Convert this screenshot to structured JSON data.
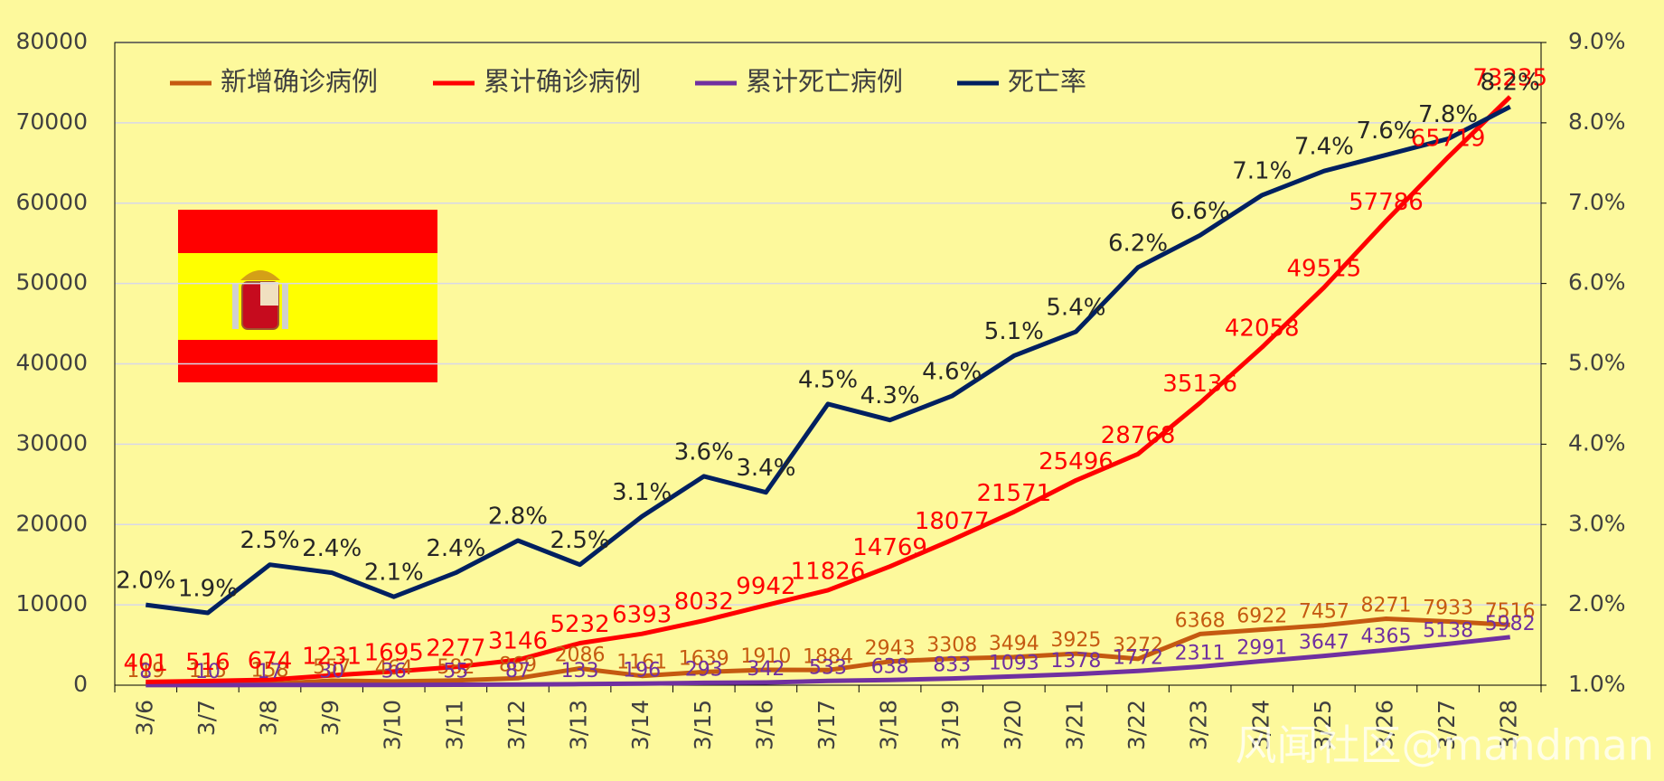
{
  "chart_data": {
    "type": "line",
    "categories": [
      "3/6",
      "3/7",
      "3/8",
      "3/9",
      "3/10",
      "3/11",
      "3/12",
      "3/13",
      "3/14",
      "3/15",
      "3/16",
      "3/17",
      "3/18",
      "3/19",
      "3/20",
      "3/21",
      "3/22",
      "3/23",
      "3/24",
      "3/25",
      "3/26",
      "3/27",
      "3/28"
    ],
    "series": [
      {
        "name": "新增确诊病例",
        "color": "#c55a11",
        "values": [
          119,
          115,
          158,
          557,
          464,
          582,
          869,
          2086,
          1161,
          1639,
          1910,
          1884,
          2943,
          3308,
          3494,
          3925,
          3272,
          6368,
          6922,
          7457,
          8271,
          7933,
          7516
        ]
      },
      {
        "name": "累计确诊病例",
        "color": "#ff0000",
        "values": [
          401,
          516,
          674,
          1231,
          1695,
          2277,
          3146,
          5232,
          6393,
          8032,
          9942,
          11826,
          14769,
          18077,
          21571,
          25496,
          28768,
          35136,
          42058,
          49515,
          57786,
          65719,
          73235
        ]
      },
      {
        "name": "累计死亡病例",
        "color": "#7030a0",
        "values": [
          8,
          10,
          17,
          30,
          36,
          55,
          87,
          133,
          196,
          293,
          342,
          533,
          638,
          833,
          1093,
          1378,
          1772,
          2311,
          2991,
          3647,
          4365,
          5138,
          5982
        ]
      },
      {
        "name": "死亡率",
        "color": "#002060",
        "axis": "y2",
        "values": [
          2.0,
          1.9,
          2.5,
          2.4,
          2.1,
          2.4,
          2.8,
          2.5,
          3.1,
          3.6,
          3.4,
          4.5,
          4.3,
          4.6,
          5.1,
          5.4,
          6.2,
          6.6,
          7.1,
          7.4,
          7.6,
          7.8,
          8.2
        ],
        "value_labels": [
          "2.0%",
          "1.9%",
          "2.5%",
          "2.4%",
          "2.1%",
          "2.4%",
          "2.8%",
          "2.5%",
          "3.1%",
          "3.6%",
          "3.4%",
          "4.5%",
          "4.3%",
          "4.6%",
          "5.1%",
          "5.4%",
          "6.2%",
          "6.6%",
          "7.1%",
          "7.4%",
          "7.6%",
          "7.8%",
          "8.2%"
        ]
      }
    ],
    "ylim": [
      0,
      80000
    ],
    "yticks": [
      0,
      10000,
      20000,
      30000,
      40000,
      50000,
      60000,
      70000,
      80000
    ],
    "y2lim": [
      1,
      9
    ],
    "y2ticks": [
      {
        "value": 1,
        "label": "1.0%"
      },
      {
        "value": 2,
        "label": "2.0%"
      },
      {
        "value": 3,
        "label": "3.0%"
      },
      {
        "value": 4,
        "label": "4.0%"
      },
      {
        "value": 5,
        "label": "5.0%"
      },
      {
        "value": 6,
        "label": "6.0%"
      },
      {
        "value": 7,
        "label": "7.0%"
      },
      {
        "value": 8,
        "label": "8.0%"
      },
      {
        "value": 9,
        "label": "9.0%"
      }
    ],
    "grid": true,
    "legend": "top-left",
    "watermark": "风闻社区@mandman"
  }
}
